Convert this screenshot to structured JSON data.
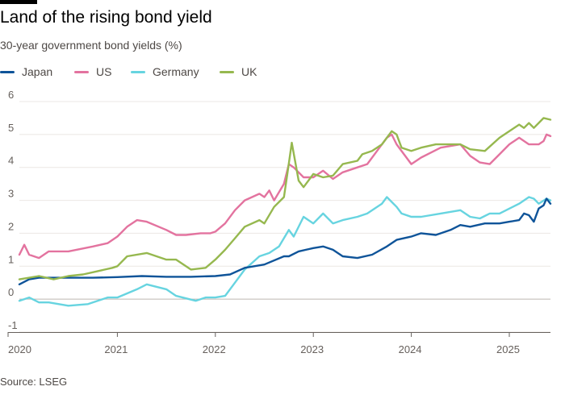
{
  "header": {
    "title": "Land of the rising bond yield",
    "subtitle": "30-year government bond yields (%)"
  },
  "footer": {
    "source": "Source: LSEG"
  },
  "chart_data": {
    "type": "line",
    "title": "Land of the rising bond yield",
    "subtitle": "30-year government bond yields (%)",
    "xlabel": "",
    "ylabel": "",
    "xlim": [
      2020.0,
      2025.42
    ],
    "ylim": [
      -1,
      6
    ],
    "y_ticks": [
      -1,
      0,
      1,
      2,
      3,
      4,
      5,
      6
    ],
    "x_ticks": [
      2020,
      2021,
      2022,
      2023,
      2024,
      2025
    ],
    "x_tick_labels": [
      "2020",
      "2021",
      "2022",
      "2023",
      "2024",
      "2025"
    ],
    "y_tick_labels": [
      "-1",
      "0",
      "1",
      "2",
      "3",
      "4",
      "5",
      "6"
    ],
    "grid": true,
    "legend": "top-left",
    "series": [
      {
        "name": "Japan",
        "color": "#0f5499",
        "x": [
          2020.0,
          2020.1,
          2020.2,
          2020.3,
          2020.5,
          2020.75,
          2021.0,
          2021.25,
          2021.5,
          2021.75,
          2022.0,
          2022.15,
          2022.3,
          2022.5,
          2022.7,
          2022.75,
          2022.85,
          2023.0,
          2023.1,
          2023.2,
          2023.3,
          2023.45,
          2023.6,
          2023.75,
          2023.85,
          2024.0,
          2024.1,
          2024.25,
          2024.4,
          2024.5,
          2024.6,
          2024.75,
          2024.9,
          2025.0,
          2025.1,
          2025.15,
          2025.2,
          2025.25,
          2025.3,
          2025.35,
          2025.38,
          2025.42
        ],
        "values": [
          0.45,
          0.6,
          0.65,
          0.65,
          0.65,
          0.65,
          0.67,
          0.7,
          0.68,
          0.68,
          0.7,
          0.75,
          0.95,
          1.05,
          1.3,
          1.3,
          1.45,
          1.55,
          1.6,
          1.5,
          1.3,
          1.25,
          1.35,
          1.6,
          1.8,
          1.9,
          2.0,
          1.95,
          2.1,
          2.25,
          2.2,
          2.3,
          2.3,
          2.35,
          2.4,
          2.6,
          2.55,
          2.35,
          2.75,
          2.85,
          3.05,
          2.9
        ]
      },
      {
        "name": "US",
        "color": "#e3739f",
        "x": [
          2020.0,
          2020.05,
          2020.1,
          2020.2,
          2020.3,
          2020.5,
          2020.75,
          2020.9,
          2021.0,
          2021.1,
          2021.2,
          2021.3,
          2021.5,
          2021.6,
          2021.7,
          2021.85,
          2021.95,
          2022.0,
          2022.1,
          2022.2,
          2022.3,
          2022.45,
          2022.5,
          2022.55,
          2022.6,
          2022.7,
          2022.75,
          2022.8,
          2022.9,
          2023.0,
          2023.1,
          2023.2,
          2023.3,
          2023.45,
          2023.55,
          2023.65,
          2023.75,
          2023.8,
          2023.85,
          2024.0,
          2024.1,
          2024.2,
          2024.3,
          2024.5,
          2024.6,
          2024.7,
          2024.8,
          2024.9,
          2025.0,
          2025.1,
          2025.2,
          2025.3,
          2025.35,
          2025.38,
          2025.42
        ],
        "values": [
          1.35,
          1.65,
          1.35,
          1.25,
          1.45,
          1.45,
          1.6,
          1.7,
          1.9,
          2.2,
          2.4,
          2.35,
          2.1,
          1.95,
          1.95,
          2.0,
          2.0,
          2.05,
          2.3,
          2.7,
          3.0,
          3.2,
          3.1,
          3.3,
          3.0,
          3.5,
          4.1,
          4.0,
          3.7,
          3.7,
          3.9,
          3.65,
          3.85,
          4.0,
          4.1,
          4.5,
          4.9,
          5.0,
          4.7,
          4.1,
          4.3,
          4.45,
          4.6,
          4.7,
          4.35,
          4.15,
          4.1,
          4.4,
          4.7,
          4.9,
          4.7,
          4.7,
          4.8,
          5.0,
          4.95
        ]
      },
      {
        "name": "Germany",
        "color": "#67d4e0",
        "x": [
          2020.0,
          2020.1,
          2020.2,
          2020.3,
          2020.5,
          2020.7,
          2020.9,
          2021.0,
          2021.2,
          2021.3,
          2021.5,
          2021.6,
          2021.8,
          2021.9,
          2022.0,
          2022.1,
          2022.2,
          2022.3,
          2022.45,
          2022.55,
          2022.65,
          2022.75,
          2022.8,
          2022.9,
          2023.0,
          2023.1,
          2023.2,
          2023.3,
          2023.45,
          2023.55,
          2023.7,
          2023.75,
          2023.85,
          2023.9,
          2024.0,
          2024.1,
          2024.3,
          2024.5,
          2024.6,
          2024.7,
          2024.8,
          2024.9,
          2025.0,
          2025.1,
          2025.2,
          2025.25,
          2025.3,
          2025.38,
          2025.42
        ],
        "values": [
          -0.05,
          0.05,
          -0.1,
          -0.1,
          -0.2,
          -0.15,
          0.05,
          0.05,
          0.3,
          0.45,
          0.3,
          0.1,
          -0.05,
          0.05,
          0.05,
          0.1,
          0.5,
          0.9,
          1.3,
          1.4,
          1.6,
          2.1,
          1.9,
          2.5,
          2.3,
          2.6,
          2.3,
          2.4,
          2.5,
          2.6,
          2.9,
          3.1,
          2.8,
          2.6,
          2.5,
          2.5,
          2.6,
          2.7,
          2.5,
          2.45,
          2.6,
          2.6,
          2.75,
          2.9,
          3.1,
          3.05,
          2.9,
          3.05,
          3.0
        ]
      },
      {
        "name": "UK",
        "color": "#96b84f",
        "x": [
          2020.0,
          2020.1,
          2020.2,
          2020.35,
          2020.5,
          2020.65,
          2020.8,
          2020.95,
          2021.0,
          2021.1,
          2021.3,
          2021.5,
          2021.6,
          2021.75,
          2021.9,
          2022.0,
          2022.1,
          2022.2,
          2022.3,
          2022.45,
          2022.5,
          2022.6,
          2022.7,
          2022.73,
          2022.78,
          2022.85,
          2022.9,
          2023.0,
          2023.1,
          2023.2,
          2023.3,
          2023.45,
          2023.5,
          2023.6,
          2023.7,
          2023.75,
          2023.8,
          2023.85,
          2023.9,
          2024.0,
          2024.1,
          2024.25,
          2024.4,
          2024.5,
          2024.6,
          2024.75,
          2024.9,
          2025.0,
          2025.1,
          2025.15,
          2025.2,
          2025.25,
          2025.3,
          2025.35,
          2025.42
        ],
        "values": [
          0.6,
          0.65,
          0.7,
          0.6,
          0.7,
          0.75,
          0.85,
          0.95,
          1.0,
          1.3,
          1.4,
          1.2,
          1.2,
          0.9,
          0.95,
          1.2,
          1.5,
          1.85,
          2.2,
          2.4,
          2.3,
          2.8,
          3.1,
          3.7,
          4.75,
          3.6,
          3.4,
          3.8,
          3.7,
          3.75,
          4.1,
          4.2,
          4.4,
          4.5,
          4.7,
          4.9,
          5.1,
          5.0,
          4.6,
          4.5,
          4.6,
          4.7,
          4.7,
          4.7,
          4.55,
          4.5,
          4.9,
          5.1,
          5.3,
          5.2,
          5.35,
          5.2,
          5.35,
          5.5,
          5.45
        ]
      }
    ]
  }
}
